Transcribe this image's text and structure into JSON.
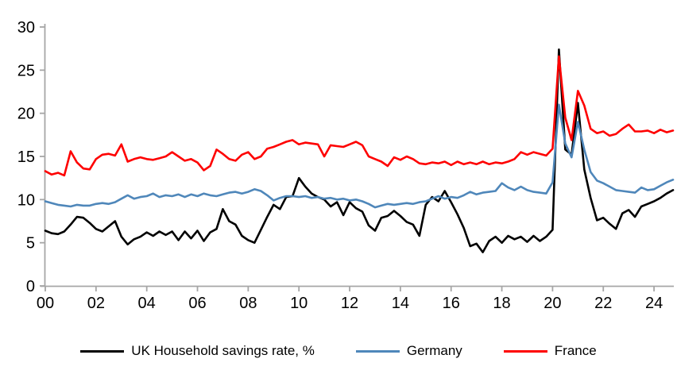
{
  "chart_data": {
    "type": "line",
    "title": "",
    "xlabel": "",
    "ylabel": "",
    "x_start_year": 2000,
    "x_step_years": 0.25,
    "x_unit": "quarterly",
    "xlim": [
      2000,
      2024.78
    ],
    "ylim": [
      0,
      30
    ],
    "grid": false,
    "legend_position": "bottom",
    "axis_color": "#a6a6a6",
    "xticks": [
      {
        "year": 2000,
        "label": "00"
      },
      {
        "year": 2002,
        "label": "02"
      },
      {
        "year": 2004,
        "label": "04"
      },
      {
        "year": 2006,
        "label": "06"
      },
      {
        "year": 2008,
        "label": "08"
      },
      {
        "year": 2010,
        "label": "10"
      },
      {
        "year": 2012,
        "label": "12"
      },
      {
        "year": 2014,
        "label": "14"
      },
      {
        "year": 2016,
        "label": "16"
      },
      {
        "year": 2018,
        "label": "18"
      },
      {
        "year": 2020,
        "label": "20"
      },
      {
        "year": 2022,
        "label": "22"
      },
      {
        "year": 2024,
        "label": "24"
      }
    ],
    "yticks": [
      {
        "value": 0,
        "label": "0"
      },
      {
        "value": 5,
        "label": "5"
      },
      {
        "value": 10,
        "label": "10"
      },
      {
        "value": 15,
        "label": "15"
      },
      {
        "value": 20,
        "label": "20"
      },
      {
        "value": 25,
        "label": "25"
      },
      {
        "value": 30,
        "label": "30"
      }
    ],
    "series": [
      {
        "name": "UK Household savings rate, %",
        "color": "#000000",
        "values": [
          6.4,
          6.1,
          6.0,
          6.3,
          7.1,
          8.0,
          7.9,
          7.3,
          6.6,
          6.3,
          6.9,
          7.5,
          5.7,
          4.8,
          5.4,
          5.7,
          6.2,
          5.8,
          6.3,
          5.9,
          6.3,
          5.3,
          6.3,
          5.5,
          6.4,
          5.2,
          6.2,
          6.6,
          8.9,
          7.5,
          7.1,
          5.8,
          5.3,
          5.0,
          6.5,
          8.0,
          9.4,
          8.9,
          10.3,
          10.4,
          12.5,
          11.5,
          10.7,
          10.3,
          10.0,
          9.2,
          9.7,
          8.2,
          9.7,
          9.0,
          8.6,
          7.0,
          6.4,
          7.9,
          8.1,
          8.7,
          8.1,
          7.4,
          7.1,
          5.8,
          9.4,
          10.3,
          9.8,
          11.0,
          9.7,
          8.3,
          6.7,
          4.6,
          4.9,
          3.9,
          5.2,
          5.7,
          5.0,
          5.8,
          5.4,
          5.7,
          5.1,
          5.8,
          5.2,
          5.7,
          6.5,
          27.4,
          15.8,
          15.2,
          21.2,
          13.5,
          10.2,
          7.6,
          7.9,
          7.2,
          6.6,
          8.4,
          8.8,
          8.0,
          9.2,
          9.5,
          9.8,
          10.2,
          10.7,
          11.1
        ]
      },
      {
        "name": "Germany",
        "color": "#4f87ba",
        "values": [
          9.8,
          9.6,
          9.4,
          9.3,
          9.2,
          9.4,
          9.3,
          9.3,
          9.5,
          9.6,
          9.5,
          9.7,
          10.1,
          10.5,
          10.1,
          10.3,
          10.4,
          10.7,
          10.3,
          10.5,
          10.4,
          10.6,
          10.3,
          10.6,
          10.4,
          10.7,
          10.5,
          10.4,
          10.6,
          10.8,
          10.9,
          10.7,
          10.9,
          11.2,
          11.0,
          10.5,
          9.9,
          10.2,
          10.4,
          10.4,
          10.3,
          10.4,
          10.2,
          10.3,
          10.1,
          10.2,
          10.0,
          10.1,
          9.9,
          10.0,
          9.8,
          9.5,
          9.1,
          9.3,
          9.5,
          9.4,
          9.5,
          9.6,
          9.5,
          9.7,
          9.8,
          10.1,
          10.4,
          10.1,
          10.3,
          10.2,
          10.5,
          10.9,
          10.6,
          10.8,
          10.9,
          11.0,
          11.9,
          11.4,
          11.1,
          11.5,
          11.1,
          10.9,
          10.8,
          10.7,
          12.0,
          21.0,
          16.5,
          14.9,
          19.0,
          15.8,
          13.2,
          12.2,
          11.9,
          11.5,
          11.1,
          11.0,
          10.9,
          10.8,
          11.4,
          11.1,
          11.2,
          11.6,
          12.0,
          12.3
        ]
      },
      {
        "name": "France",
        "color": "#fe0000",
        "values": [
          13.3,
          12.9,
          13.1,
          12.8,
          15.6,
          14.3,
          13.6,
          13.5,
          14.7,
          15.2,
          15.3,
          15.1,
          16.4,
          14.4,
          14.7,
          14.9,
          14.7,
          14.6,
          14.8,
          15.0,
          15.5,
          15.0,
          14.5,
          14.7,
          14.3,
          13.4,
          13.9,
          15.8,
          15.3,
          14.7,
          14.5,
          15.2,
          15.5,
          14.7,
          15.0,
          15.9,
          16.1,
          16.4,
          16.7,
          16.9,
          16.4,
          16.6,
          16.5,
          16.4,
          15.0,
          16.3,
          16.2,
          16.1,
          16.4,
          16.7,
          16.3,
          15.0,
          14.7,
          14.4,
          13.9,
          14.9,
          14.6,
          15.0,
          14.7,
          14.2,
          14.1,
          14.3,
          14.2,
          14.4,
          14.0,
          14.4,
          14.1,
          14.3,
          14.1,
          14.4,
          14.1,
          14.3,
          14.2,
          14.4,
          14.7,
          15.5,
          15.2,
          15.5,
          15.3,
          15.1,
          15.9,
          26.6,
          19.5,
          16.9,
          22.6,
          20.9,
          18.2,
          17.7,
          17.9,
          17.4,
          17.6,
          18.2,
          18.7,
          17.9,
          17.9,
          18.0,
          17.7,
          18.1,
          17.8,
          18.0
        ]
      }
    ]
  },
  "legend": {
    "items": [
      {
        "label": "UK Household savings rate, %"
      },
      {
        "label": "Germany"
      },
      {
        "label": "France"
      }
    ]
  }
}
